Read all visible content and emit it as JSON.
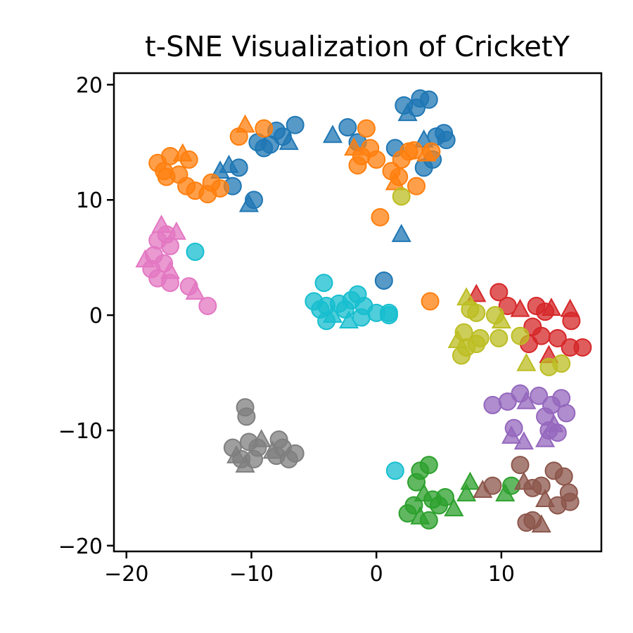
{
  "chart_data": {
    "type": "scatter",
    "title": "t-SNE Visualization of CricketY",
    "xlabel": "",
    "ylabel": "",
    "xlim": [
      -21,
      18
    ],
    "ylim": [
      -20.5,
      21
    ],
    "xticks": [
      -20,
      -10,
      0,
      10
    ],
    "yticks": [
      20,
      10,
      0,
      -10,
      -20
    ],
    "xtick_labels": [
      "−20",
      "−10",
      "0",
      "10"
    ],
    "ytick_labels": [
      "20",
      "10",
      "0",
      "−10",
      "−20"
    ],
    "grid": false,
    "legend": "none",
    "marker_shapes": [
      "circle",
      "triangle"
    ],
    "series": [
      {
        "color": "#1f77b4",
        "points": [
          {
            "x": -7.5,
            "y": 15.5,
            "m": "circle"
          },
          {
            "x": -6.5,
            "y": 16.5,
            "m": "circle"
          },
          {
            "x": -8.0,
            "y": 16.0,
            "m": "circle"
          },
          {
            "x": -7.0,
            "y": 15.0,
            "m": "triangle"
          },
          {
            "x": -9.0,
            "y": 14.5,
            "m": "circle"
          },
          {
            "x": -9.5,
            "y": 15.0,
            "m": "circle"
          },
          {
            "x": -8.5,
            "y": 14.8,
            "m": "circle"
          },
          {
            "x": -11.0,
            "y": 12.8,
            "m": "circle"
          },
          {
            "x": -12.5,
            "y": 12.5,
            "m": "triangle"
          },
          {
            "x": -11.8,
            "y": 13.0,
            "m": "triangle"
          },
          {
            "x": -11.5,
            "y": 11.2,
            "m": "circle"
          },
          {
            "x": -9.8,
            "y": 10.0,
            "m": "circle"
          },
          {
            "x": -10.2,
            "y": 9.6,
            "m": "triangle"
          },
          {
            "x": -3.5,
            "y": 15.6,
            "m": "triangle"
          },
          {
            "x": -2.3,
            "y": 16.3,
            "m": "circle"
          },
          {
            "x": -1.5,
            "y": 15.0,
            "m": "circle"
          },
          {
            "x": 1.5,
            "y": 14.5,
            "m": "circle"
          },
          {
            "x": 2.2,
            "y": 18.2,
            "m": "circle"
          },
          {
            "x": 2.5,
            "y": 17.5,
            "m": "triangle"
          },
          {
            "x": 3.5,
            "y": 18.8,
            "m": "circle"
          },
          {
            "x": 4.2,
            "y": 18.7,
            "m": "circle"
          },
          {
            "x": 3.2,
            "y": 18.0,
            "m": "circle"
          },
          {
            "x": 3.8,
            "y": 15.2,
            "m": "triangle"
          },
          {
            "x": 4.8,
            "y": 15.5,
            "m": "circle"
          },
          {
            "x": 5.4,
            "y": 15.8,
            "m": "circle"
          },
          {
            "x": 5.6,
            "y": 15.2,
            "m": "circle"
          },
          {
            "x": 4.5,
            "y": 13.5,
            "m": "circle"
          },
          {
            "x": 3.8,
            "y": 12.8,
            "m": "circle"
          },
          {
            "x": 2.0,
            "y": 7.0,
            "m": "triangle"
          },
          {
            "x": 0.6,
            "y": 3.0,
            "m": "circle"
          }
        ]
      },
      {
        "color": "#ff7f0e",
        "points": [
          {
            "x": -17.5,
            "y": 13.2,
            "m": "circle"
          },
          {
            "x": -17.0,
            "y": 12.5,
            "m": "circle"
          },
          {
            "x": -16.5,
            "y": 13.8,
            "m": "circle"
          },
          {
            "x": -15.5,
            "y": 14.0,
            "m": "triangle"
          },
          {
            "x": -15.0,
            "y": 13.5,
            "m": "circle"
          },
          {
            "x": -15.8,
            "y": 12.2,
            "m": "circle"
          },
          {
            "x": -16.8,
            "y": 12.0,
            "m": "circle"
          },
          {
            "x": -15.2,
            "y": 11.2,
            "m": "circle"
          },
          {
            "x": -14.5,
            "y": 10.8,
            "m": "circle"
          },
          {
            "x": -13.2,
            "y": 11.5,
            "m": "circle"
          },
          {
            "x": -13.5,
            "y": 10.5,
            "m": "circle"
          },
          {
            "x": -12.5,
            "y": 11.0,
            "m": "circle"
          },
          {
            "x": -11.0,
            "y": 15.5,
            "m": "circle"
          },
          {
            "x": -10.5,
            "y": 16.5,
            "m": "triangle"
          },
          {
            "x": -9.0,
            "y": 16.2,
            "m": "circle"
          },
          {
            "x": -0.8,
            "y": 16.2,
            "m": "circle"
          },
          {
            "x": -1.8,
            "y": 14.5,
            "m": "triangle"
          },
          {
            "x": -1.2,
            "y": 13.8,
            "m": "circle"
          },
          {
            "x": -0.5,
            "y": 14.5,
            "m": "circle"
          },
          {
            "x": -1.5,
            "y": 13.0,
            "m": "circle"
          },
          {
            "x": 0.0,
            "y": 13.5,
            "m": "circle"
          },
          {
            "x": 1.2,
            "y": 12.5,
            "m": "circle"
          },
          {
            "x": 2.0,
            "y": 13.5,
            "m": "circle"
          },
          {
            "x": 2.6,
            "y": 14.2,
            "m": "circle"
          },
          {
            "x": 3.0,
            "y": 14.3,
            "m": "circle"
          },
          {
            "x": 4.0,
            "y": 14.0,
            "m": "triangle"
          },
          {
            "x": 4.4,
            "y": 14.2,
            "m": "circle"
          },
          {
            "x": 1.5,
            "y": 11.5,
            "m": "triangle"
          },
          {
            "x": 1.8,
            "y": 12.0,
            "m": "circle"
          },
          {
            "x": 3.2,
            "y": 11.2,
            "m": "circle"
          },
          {
            "x": 0.3,
            "y": 8.5,
            "m": "circle"
          },
          {
            "x": 4.3,
            "y": 1.2,
            "m": "circle"
          }
        ]
      },
      {
        "color": "#2ca02c",
        "points": [
          {
            "x": 3.5,
            "y": -13.5,
            "m": "circle"
          },
          {
            "x": 4.2,
            "y": -13.0,
            "m": "circle"
          },
          {
            "x": 3.2,
            "y": -14.5,
            "m": "circle"
          },
          {
            "x": 3.8,
            "y": -15.5,
            "m": "triangle"
          },
          {
            "x": 4.5,
            "y": -16.0,
            "m": "circle"
          },
          {
            "x": 3.0,
            "y": -16.5,
            "m": "circle"
          },
          {
            "x": 2.5,
            "y": -17.2,
            "m": "circle"
          },
          {
            "x": 3.5,
            "y": -17.5,
            "m": "triangle"
          },
          {
            "x": 4.2,
            "y": -17.8,
            "m": "circle"
          },
          {
            "x": 5.0,
            "y": -16.5,
            "m": "circle"
          },
          {
            "x": 5.5,
            "y": -15.8,
            "m": "circle"
          },
          {
            "x": 6.2,
            "y": -16.8,
            "m": "triangle"
          },
          {
            "x": 7.5,
            "y": -14.5,
            "m": "triangle"
          },
          {
            "x": 7.2,
            "y": -15.5,
            "m": "triangle"
          },
          {
            "x": 10.3,
            "y": -15.5,
            "m": "triangle"
          },
          {
            "x": 10.8,
            "y": -14.8,
            "m": "circle"
          }
        ]
      },
      {
        "color": "#d62728",
        "points": [
          {
            "x": 8.0,
            "y": 1.8,
            "m": "triangle"
          },
          {
            "x": 9.8,
            "y": 2.0,
            "m": "circle"
          },
          {
            "x": 10.5,
            "y": 0.8,
            "m": "circle"
          },
          {
            "x": 11.5,
            "y": 0.5,
            "m": "triangle"
          },
          {
            "x": 12.8,
            "y": 0.8,
            "m": "circle"
          },
          {
            "x": 13.5,
            "y": 0.3,
            "m": "circle"
          },
          {
            "x": 14.0,
            "y": 0.6,
            "m": "triangle"
          },
          {
            "x": 15.5,
            "y": 0.5,
            "m": "triangle"
          },
          {
            "x": 15.6,
            "y": -0.5,
            "m": "circle"
          },
          {
            "x": 12.5,
            "y": -1.0,
            "m": "circle"
          },
          {
            "x": 13.2,
            "y": -1.8,
            "m": "circle"
          },
          {
            "x": 12.2,
            "y": -2.5,
            "m": "circle"
          },
          {
            "x": 14.5,
            "y": -2.0,
            "m": "circle"
          },
          {
            "x": 15.5,
            "y": -2.8,
            "m": "circle"
          },
          {
            "x": 16.5,
            "y": -2.8,
            "m": "circle"
          },
          {
            "x": 13.8,
            "y": -3.5,
            "m": "triangle"
          }
        ]
      },
      {
        "color": "#9467bd",
        "points": [
          {
            "x": 9.3,
            "y": -7.8,
            "m": "circle"
          },
          {
            "x": 10.5,
            "y": -7.5,
            "m": "circle"
          },
          {
            "x": 11.5,
            "y": -6.8,
            "m": "circle"
          },
          {
            "x": 12.0,
            "y": -7.5,
            "m": "triangle"
          },
          {
            "x": 13.0,
            "y": -7.0,
            "m": "circle"
          },
          {
            "x": 14.0,
            "y": -7.8,
            "m": "circle"
          },
          {
            "x": 14.8,
            "y": -7.2,
            "m": "circle"
          },
          {
            "x": 15.2,
            "y": -8.5,
            "m": "circle"
          },
          {
            "x": 13.5,
            "y": -8.8,
            "m": "circle"
          },
          {
            "x": 14.2,
            "y": -9.5,
            "m": "triangle"
          },
          {
            "x": 11.0,
            "y": -9.8,
            "m": "circle"
          },
          {
            "x": 10.8,
            "y": -10.5,
            "m": "triangle"
          },
          {
            "x": 11.8,
            "y": -11.0,
            "m": "triangle"
          },
          {
            "x": 13.5,
            "y": -10.8,
            "m": "triangle"
          },
          {
            "x": 14.5,
            "y": -10.2,
            "m": "circle"
          },
          {
            "x": 13.8,
            "y": -10.0,
            "m": "circle"
          }
        ]
      },
      {
        "color": "#8c564b",
        "points": [
          {
            "x": 8.5,
            "y": -15.2,
            "m": "triangle"
          },
          {
            "x": 9.3,
            "y": -14.8,
            "m": "circle"
          },
          {
            "x": 11.5,
            "y": -13.0,
            "m": "circle"
          },
          {
            "x": 11.8,
            "y": -14.5,
            "m": "triangle"
          },
          {
            "x": 12.5,
            "y": -15.0,
            "m": "circle"
          },
          {
            "x": 13.2,
            "y": -14.8,
            "m": "circle"
          },
          {
            "x": 14.2,
            "y": -13.5,
            "m": "circle"
          },
          {
            "x": 15.0,
            "y": -14.0,
            "m": "circle"
          },
          {
            "x": 15.4,
            "y": -15.4,
            "m": "circle"
          },
          {
            "x": 13.5,
            "y": -16.0,
            "m": "triangle"
          },
          {
            "x": 14.5,
            "y": -16.5,
            "m": "circle"
          },
          {
            "x": 12.5,
            "y": -17.8,
            "m": "circle"
          },
          {
            "x": 13.2,
            "y": -18.2,
            "m": "triangle"
          },
          {
            "x": 12.0,
            "y": -18.0,
            "m": "circle"
          },
          {
            "x": 15.5,
            "y": -16.2,
            "m": "circle"
          }
        ]
      },
      {
        "color": "#e377c2",
        "points": [
          {
            "x": -18.5,
            "y": 4.8,
            "m": "triangle"
          },
          {
            "x": -17.5,
            "y": 6.5,
            "m": "circle"
          },
          {
            "x": -17.2,
            "y": 7.8,
            "m": "triangle"
          },
          {
            "x": -16.8,
            "y": 7.0,
            "m": "circle"
          },
          {
            "x": -16.5,
            "y": 6.0,
            "m": "circle"
          },
          {
            "x": -16.0,
            "y": 7.2,
            "m": "triangle"
          },
          {
            "x": -17.8,
            "y": 5.2,
            "m": "circle"
          },
          {
            "x": -17.0,
            "y": 4.5,
            "m": "circle"
          },
          {
            "x": -16.5,
            "y": 3.8,
            "m": "triangle"
          },
          {
            "x": -17.5,
            "y": 3.2,
            "m": "circle"
          },
          {
            "x": -16.5,
            "y": 2.8,
            "m": "circle"
          },
          {
            "x": -18.0,
            "y": 4.0,
            "m": "circle"
          },
          {
            "x": -15.0,
            "y": 2.5,
            "m": "circle"
          },
          {
            "x": -14.5,
            "y": 2.0,
            "m": "triangle"
          },
          {
            "x": -13.5,
            "y": 0.8,
            "m": "circle"
          }
        ]
      },
      {
        "color": "#7f7f7f",
        "points": [
          {
            "x": -10.5,
            "y": -8.0,
            "m": "circle"
          },
          {
            "x": -10.4,
            "y": -8.8,
            "m": "circle"
          },
          {
            "x": -11.5,
            "y": -11.5,
            "m": "circle"
          },
          {
            "x": -11.2,
            "y": -12.2,
            "m": "triangle"
          },
          {
            "x": -10.2,
            "y": -11.0,
            "m": "circle"
          },
          {
            "x": -9.5,
            "y": -11.5,
            "m": "circle"
          },
          {
            "x": -9.2,
            "y": -10.8,
            "m": "triangle"
          },
          {
            "x": -10.8,
            "y": -12.5,
            "m": "circle"
          },
          {
            "x": -10.5,
            "y": -13.0,
            "m": "triangle"
          },
          {
            "x": -9.8,
            "y": -12.5,
            "m": "circle"
          },
          {
            "x": -7.8,
            "y": -10.8,
            "m": "circle"
          },
          {
            "x": -7.5,
            "y": -11.5,
            "m": "circle"
          },
          {
            "x": -8.0,
            "y": -12.2,
            "m": "circle"
          },
          {
            "x": -7.0,
            "y": -12.5,
            "m": "circle"
          },
          {
            "x": -6.5,
            "y": -12.0,
            "m": "circle"
          },
          {
            "x": -8.3,
            "y": -11.8,
            "m": "triangle"
          }
        ]
      },
      {
        "color": "#bcbd22",
        "points": [
          {
            "x": 2.0,
            "y": 10.3,
            "m": "circle"
          },
          {
            "x": 7.2,
            "y": 1.5,
            "m": "triangle"
          },
          {
            "x": 7.5,
            "y": 0.5,
            "m": "circle"
          },
          {
            "x": 8.0,
            "y": 0.2,
            "m": "circle"
          },
          {
            "x": 9.5,
            "y": 0.0,
            "m": "circle"
          },
          {
            "x": 10.0,
            "y": -0.5,
            "m": "triangle"
          },
          {
            "x": 6.5,
            "y": -2.2,
            "m": "triangle"
          },
          {
            "x": 7.0,
            "y": -1.5,
            "m": "circle"
          },
          {
            "x": 7.2,
            "y": -2.8,
            "m": "circle"
          },
          {
            "x": 8.0,
            "y": -2.5,
            "m": "circle"
          },
          {
            "x": 8.3,
            "y": -2.0,
            "m": "circle"
          },
          {
            "x": 6.8,
            "y": -3.5,
            "m": "circle"
          },
          {
            "x": 9.8,
            "y": -2.0,
            "m": "circle"
          },
          {
            "x": 11.5,
            "y": -1.8,
            "m": "circle"
          },
          {
            "x": 12.0,
            "y": -4.2,
            "m": "triangle"
          },
          {
            "x": 13.8,
            "y": -4.5,
            "m": "circle"
          },
          {
            "x": 14.8,
            "y": -4.2,
            "m": "circle"
          }
        ]
      },
      {
        "color": "#17becf",
        "points": [
          {
            "x": -14.5,
            "y": 5.5,
            "m": "circle"
          },
          {
            "x": -4.2,
            "y": 2.8,
            "m": "circle"
          },
          {
            "x": -5.0,
            "y": 1.2,
            "m": "circle"
          },
          {
            "x": -4.5,
            "y": 0.5,
            "m": "circle"
          },
          {
            "x": -4.0,
            "y": 0.8,
            "m": "circle"
          },
          {
            "x": -3.5,
            "y": 0.0,
            "m": "triangle"
          },
          {
            "x": -3.0,
            "y": 1.0,
            "m": "circle"
          },
          {
            "x": -2.5,
            "y": 0.5,
            "m": "circle"
          },
          {
            "x": -2.0,
            "y": 1.3,
            "m": "circle"
          },
          {
            "x": -1.5,
            "y": 1.8,
            "m": "circle"
          },
          {
            "x": -1.0,
            "y": 0.8,
            "m": "circle"
          },
          {
            "x": -2.2,
            "y": -0.5,
            "m": "triangle"
          },
          {
            "x": -1.2,
            "y": -0.2,
            "m": "circle"
          },
          {
            "x": -4.0,
            "y": -0.5,
            "m": "circle"
          },
          {
            "x": 0.0,
            "y": 0.2,
            "m": "circle"
          },
          {
            "x": 1.0,
            "y": 0.0,
            "m": "circle"
          },
          {
            "x": 1.0,
            "y": 0.2,
            "m": "circle"
          },
          {
            "x": 1.5,
            "y": -13.5,
            "m": "circle"
          }
        ]
      }
    ]
  }
}
